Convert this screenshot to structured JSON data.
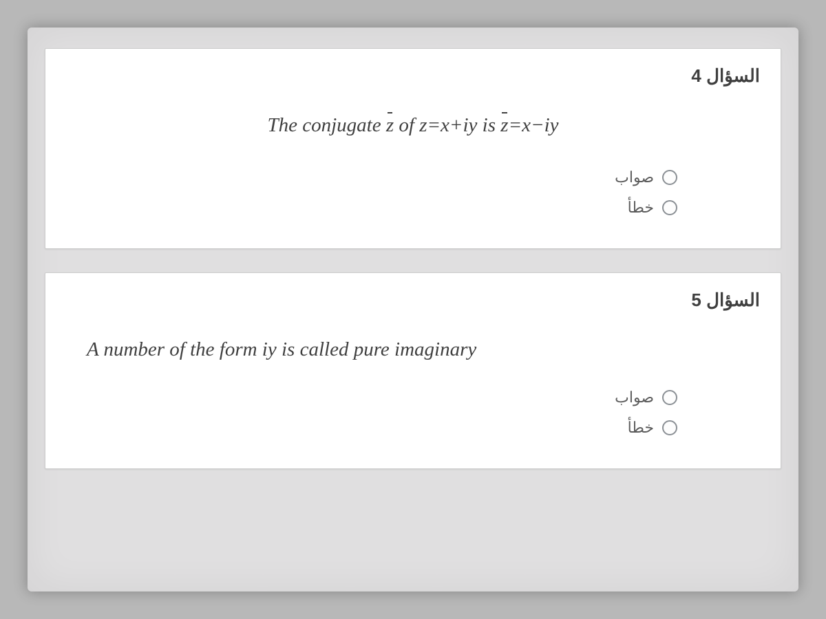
{
  "questions": [
    {
      "header": "السؤال 4",
      "text_prefix": "The conjugate ",
      "text_z1": "z",
      "text_mid1": " of ",
      "text_eq1": "z=x+iy",
      "text_mid2": " is ",
      "text_z2": "z",
      "text_eq2": "=x−iy",
      "options": {
        "true": "صواب",
        "false": "خطأ"
      }
    },
    {
      "header": "السؤال 5",
      "text": "A number of the form  iy is called pure imaginary",
      "options": {
        "true": "صواب",
        "false": "خطأ"
      }
    }
  ]
}
